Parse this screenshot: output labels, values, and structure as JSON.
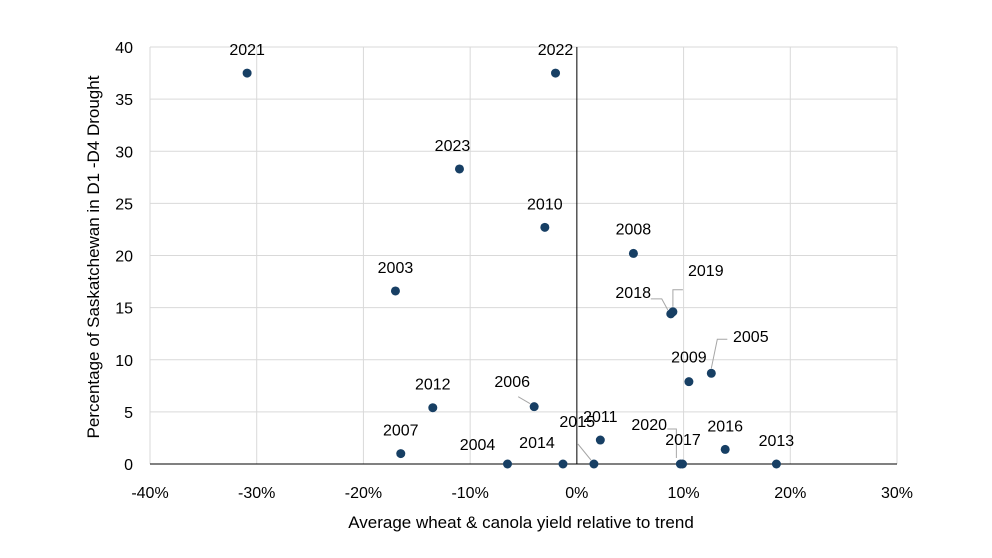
{
  "chart_data": {
    "type": "scatter",
    "xlabel": "Average wheat & canola yield relative to trend",
    "ylabel": "Percentage of Saskatchewan in D1 -D4 Drought",
    "xlim": [
      -40,
      30
    ],
    "ylim": [
      0,
      40
    ],
    "x_ticks": [
      -40,
      -30,
      -20,
      -10,
      0,
      10,
      20,
      30
    ],
    "x_tick_labels": [
      "-40%",
      "-30%",
      "-20%",
      "-10%",
      "0%",
      "10%",
      "20%",
      "30%"
    ],
    "y_ticks": [
      0,
      5,
      10,
      15,
      20,
      25,
      30,
      35,
      40
    ],
    "y_tick_labels": [
      "0",
      "5",
      "10",
      "15",
      "20",
      "25",
      "30",
      "35",
      "40"
    ],
    "grid": true,
    "marker_color": "#173F64",
    "points": [
      {
        "label": "2021",
        "x": -30.9,
        "y": 37.5
      },
      {
        "label": "2022",
        "x": -2.0,
        "y": 37.5
      },
      {
        "label": "2023",
        "x": -11.0,
        "y": 28.3
      },
      {
        "label": "2010",
        "x": -3.0,
        "y": 22.7
      },
      {
        "label": "2008",
        "x": 5.3,
        "y": 20.2
      },
      {
        "label": "2003",
        "x": -17.0,
        "y": 16.6
      },
      {
        "label": "2019",
        "x": 9.0,
        "y": 14.6
      },
      {
        "label": "2018",
        "x": 8.8,
        "y": 14.4
      },
      {
        "label": "2005",
        "x": 12.6,
        "y": 8.7
      },
      {
        "label": "2009",
        "x": 10.5,
        "y": 7.9
      },
      {
        "label": "2012",
        "x": -13.5,
        "y": 5.4
      },
      {
        "label": "2006",
        "x": -4.0,
        "y": 5.5
      },
      {
        "label": "2011",
        "x": 2.2,
        "y": 2.3
      },
      {
        "label": "2007",
        "x": -16.5,
        "y": 1.0
      },
      {
        "label": "2016",
        "x": 13.9,
        "y": 1.4
      },
      {
        "label": "2004",
        "x": -6.5,
        "y": 0.0
      },
      {
        "label": "2014",
        "x": -1.3,
        "y": 0.0
      },
      {
        "label": "2015",
        "x": 1.6,
        "y": 0.0
      },
      {
        "label": "2020",
        "x": 9.7,
        "y": 0.0
      },
      {
        "label": "2017",
        "x": 9.9,
        "y": 0.0
      },
      {
        "label": "2013",
        "x": 18.7,
        "y": 0.0
      }
    ]
  }
}
